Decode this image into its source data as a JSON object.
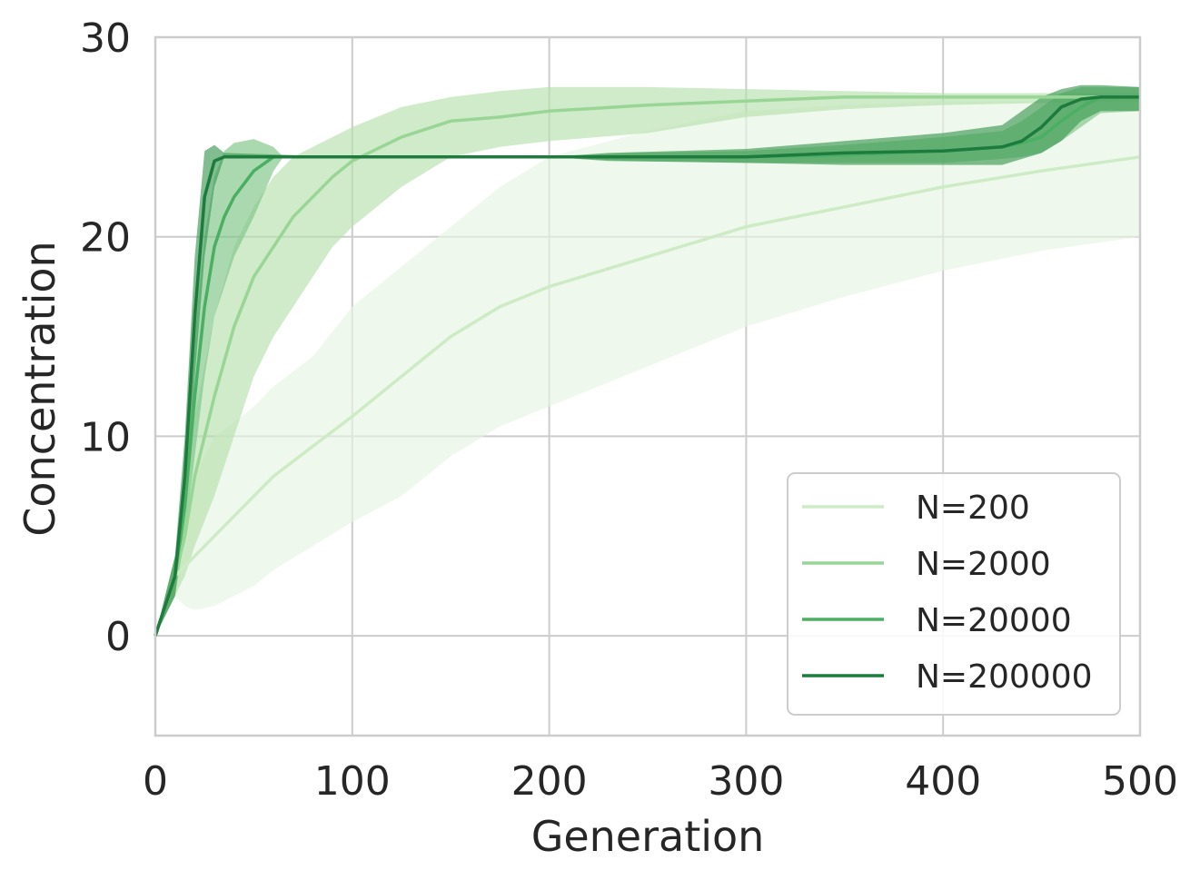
{
  "chart_data": {
    "type": "line",
    "title": "",
    "xlabel": "Generation",
    "ylabel": "Concentration",
    "xlim": [
      0,
      500
    ],
    "ylim": [
      -5,
      30
    ],
    "xticks": [
      0,
      100,
      200,
      300,
      400,
      500
    ],
    "yticks": [
      0,
      10,
      20,
      30
    ],
    "grid": true,
    "legend_position": "lower-right",
    "series": [
      {
        "name": "N=200",
        "color": "#cdebc5",
        "band_color": "#e6f4e2",
        "x": [
          0,
          5,
          10,
          15,
          20,
          30,
          40,
          50,
          60,
          80,
          100,
          125,
          150,
          175,
          200,
          250,
          300,
          350,
          400,
          450,
          500
        ],
        "mean": [
          0,
          1.5,
          3.0,
          3.5,
          4.0,
          5.0,
          6.0,
          7.0,
          8.0,
          9.5,
          11.0,
          13.0,
          15.0,
          16.5,
          17.5,
          19.0,
          20.5,
          21.5,
          22.5,
          23.3,
          24.0
        ],
        "lower": [
          0,
          1.0,
          2.0,
          1.5,
          1.3,
          1.5,
          2.0,
          2.5,
          3.3,
          4.5,
          5.7,
          7.0,
          9.0,
          10.5,
          11.5,
          13.5,
          15.5,
          17.0,
          18.3,
          19.3,
          20.0
        ],
        "upper": [
          0,
          2.0,
          4.0,
          6.0,
          8.0,
          10.0,
          10.7,
          11.5,
          12.5,
          14.0,
          16.5,
          18.5,
          20.5,
          22.5,
          24.0,
          25.3,
          26.3,
          26.6,
          26.8,
          26.8,
          27.0
        ]
      },
      {
        "name": "N=2000",
        "color": "#99d595",
        "band_color": "#b5e1ae",
        "x": [
          0,
          5,
          10,
          15,
          20,
          30,
          40,
          50,
          60,
          70,
          80,
          90,
          100,
          125,
          150,
          175,
          200,
          250,
          300,
          350,
          400,
          450,
          500
        ],
        "mean": [
          0,
          1.5,
          3.0,
          5.0,
          8.0,
          12.0,
          15.5,
          18.0,
          19.5,
          21.0,
          22.0,
          23.0,
          23.8,
          25.0,
          25.8,
          26.0,
          26.3,
          26.6,
          26.8,
          27.0,
          27.0,
          27.0,
          27.0
        ],
        "lower": [
          0,
          1.0,
          2.0,
          3.0,
          4.5,
          7.0,
          10.0,
          13.0,
          15.0,
          16.5,
          18.0,
          19.5,
          20.5,
          22.5,
          24.0,
          24.5,
          24.8,
          25.2,
          26.0,
          26.4,
          26.6,
          26.7,
          26.8
        ],
        "upper": [
          0,
          2.0,
          4.0,
          7.5,
          11.0,
          16.0,
          19.5,
          21.5,
          23.0,
          24.0,
          24.5,
          25.0,
          25.5,
          26.5,
          27.0,
          27.3,
          27.5,
          27.5,
          27.4,
          27.3,
          27.2,
          27.2,
          27.2
        ]
      },
      {
        "name": "N=20000",
        "color": "#4aaf62",
        "band_color": "#7dc486",
        "x": [
          0,
          5,
          10,
          15,
          20,
          25,
          30,
          35,
          40,
          50,
          60,
          65,
          100,
          200,
          240,
          300,
          350,
          400,
          430,
          440,
          450,
          460,
          470,
          480,
          500
        ],
        "mean": [
          0,
          1.5,
          3.0,
          6.5,
          12.0,
          16.5,
          19.5,
          21.0,
          22.0,
          23.3,
          24.0,
          24.0,
          24.0,
          24.0,
          24.0,
          24.0,
          24.1,
          24.3,
          24.5,
          24.7,
          25.0,
          25.8,
          26.5,
          27.0,
          27.0
        ],
        "lower": [
          0,
          1.0,
          2.0,
          5.0,
          9.0,
          13.0,
          16.0,
          17.5,
          19.0,
          21.0,
          23.3,
          24.0,
          24.0,
          24.0,
          23.8,
          23.7,
          23.7,
          23.7,
          23.9,
          24.0,
          24.2,
          24.8,
          25.5,
          26.2,
          26.3
        ],
        "upper": [
          0,
          2.0,
          4.0,
          8.0,
          15.0,
          20.0,
          23.0,
          24.3,
          24.7,
          24.9,
          24.5,
          24.0,
          24.0,
          24.0,
          24.2,
          24.3,
          24.6,
          25.0,
          25.3,
          25.8,
          26.5,
          27.2,
          27.5,
          27.5,
          27.5
        ]
      },
      {
        "name": "N=200000",
        "color": "#1d7b3d",
        "band_color": "#3d9a55",
        "x": [
          0,
          5,
          10,
          15,
          20,
          25,
          30,
          35,
          100,
          200,
          230,
          300,
          350,
          400,
          430,
          440,
          450,
          460,
          470,
          480,
          500
        ],
        "mean": [
          0,
          1.5,
          3.0,
          8.0,
          16.0,
          22.0,
          23.8,
          24.0,
          24.0,
          24.0,
          24.0,
          24.0,
          24.2,
          24.3,
          24.5,
          24.8,
          25.5,
          26.5,
          26.9,
          27.0,
          27.0
        ],
        "lower": [
          0,
          1.0,
          2.0,
          6.0,
          13.0,
          19.0,
          22.5,
          24.0,
          24.0,
          24.0,
          23.8,
          23.7,
          23.6,
          23.6,
          23.6,
          23.9,
          24.2,
          24.8,
          25.8,
          26.3,
          26.3
        ],
        "upper": [
          0,
          2.0,
          4.0,
          10.0,
          19.0,
          24.3,
          24.6,
          24.2,
          24.0,
          24.0,
          24.2,
          24.4,
          24.8,
          25.2,
          25.6,
          26.3,
          27.0,
          27.4,
          27.6,
          27.6,
          27.5
        ]
      }
    ]
  },
  "style": {
    "grid_color": "#cccccc",
    "spine_color": "#cccccc",
    "legend_border": "#cccccc"
  }
}
